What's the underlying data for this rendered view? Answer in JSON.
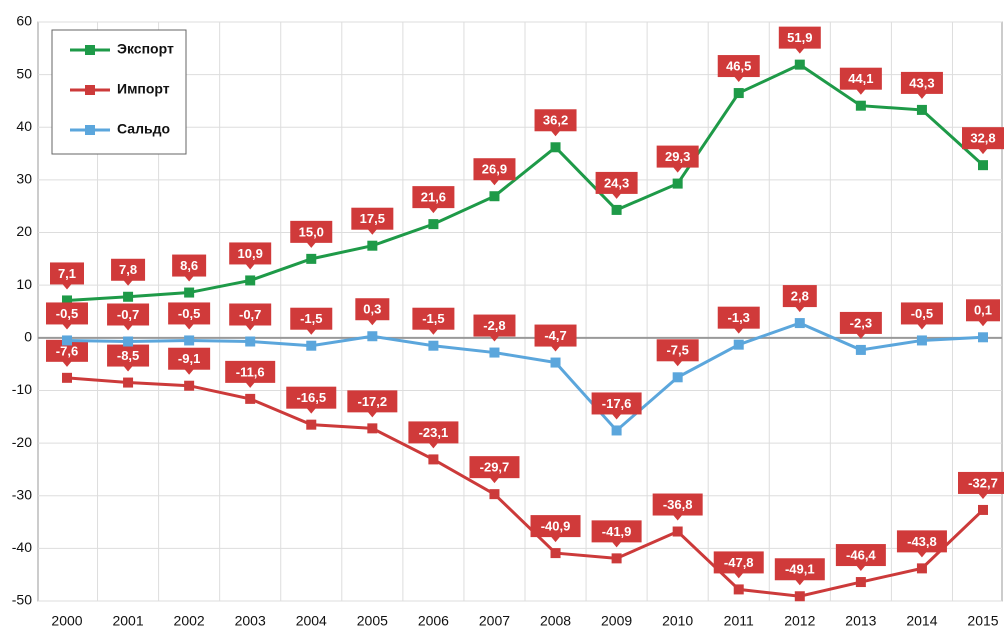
{
  "chart_data": {
    "type": "line",
    "categories": [
      "2000",
      "2001",
      "2002",
      "2003",
      "2004",
      "2005",
      "2006",
      "2007",
      "2008",
      "2009",
      "2010",
      "2011",
      "2012",
      "2013",
      "2014",
      "2015"
    ],
    "series": [
      {
        "name": "Экспорт",
        "color": "#1e9a48",
        "values": [
          7.1,
          7.8,
          8.6,
          10.9,
          15.0,
          17.5,
          21.6,
          26.9,
          36.2,
          24.3,
          29.3,
          46.5,
          51.9,
          44.1,
          43.3,
          32.8
        ],
        "value_labels": [
          "7,1",
          "7,8",
          "8,6",
          "10,9",
          "15,0",
          "17,5",
          "21,6",
          "26,9",
          "36,2",
          "24,3",
          "29,3",
          "46,5",
          "51,9",
          "44,1",
          "43,3",
          "32,8"
        ]
      },
      {
        "name": "Импорт",
        "color": "#cc3a3a",
        "values": [
          -7.6,
          -8.5,
          -9.1,
          -11.6,
          -16.5,
          -17.2,
          -23.1,
          -29.7,
          -40.9,
          -41.9,
          -36.8,
          -47.8,
          -49.1,
          -46.4,
          -43.8,
          -32.7
        ],
        "value_labels": [
          "-7,6",
          "-8,5",
          "-9,1",
          "-11,6",
          "-16,5",
          "-17,2",
          "-23,1",
          "-29,7",
          "-40,9",
          "-41,9",
          "-36,8",
          "-47,8",
          "-49,1",
          "-46,4",
          "-43,8",
          "-32,7"
        ]
      },
      {
        "name": "Сальдо",
        "color": "#5ba6dc",
        "values": [
          -0.5,
          -0.7,
          -0.5,
          -0.7,
          -1.5,
          0.3,
          -1.5,
          -2.8,
          -4.7,
          -17.6,
          -7.5,
          -1.3,
          2.8,
          -2.3,
          -0.5,
          0.1
        ],
        "value_labels": [
          "-0,5",
          "-0,7",
          "-0,5",
          "-0,7",
          "-1,5",
          "0,3",
          "-1,5",
          "-2,8",
          "-4,7",
          "-17,6",
          "-7,5",
          "-1,3",
          "2,8",
          "-2,3",
          "-0,5",
          "0,1"
        ]
      }
    ],
    "ylim": [
      -50,
      60
    ],
    "yticks": [
      -50,
      -40,
      -30,
      -20,
      -10,
      0,
      10,
      20,
      30,
      40,
      50,
      60
    ],
    "grid": true,
    "legend": "upper left",
    "label_color": "#d03a3a"
  }
}
